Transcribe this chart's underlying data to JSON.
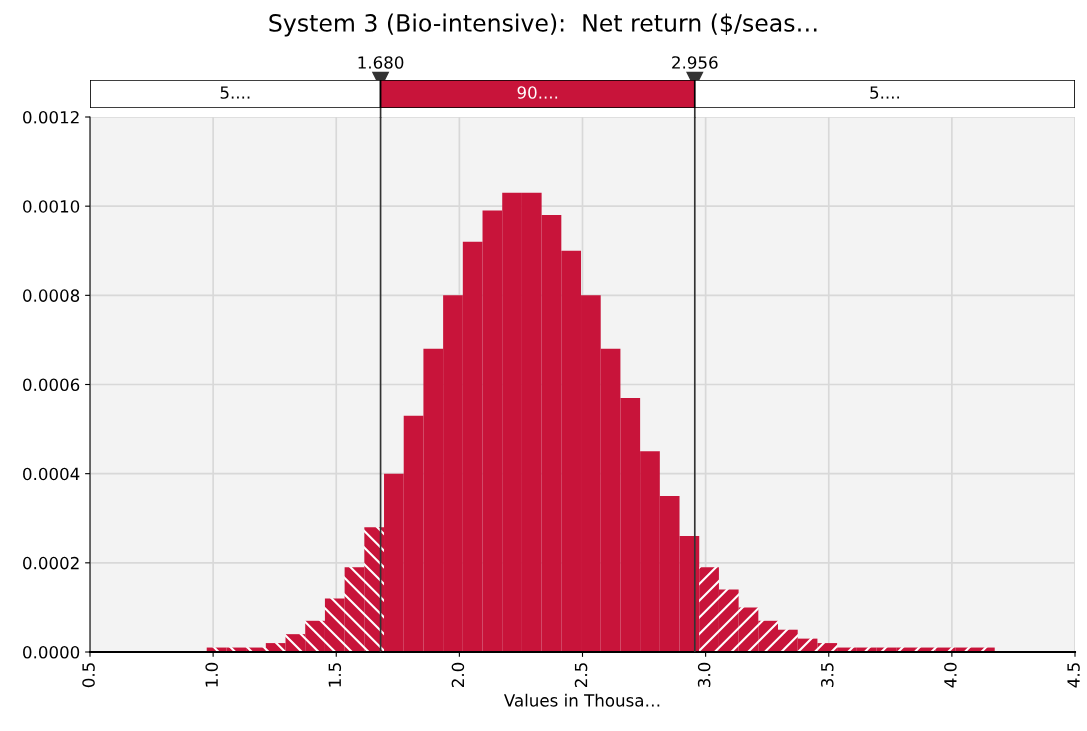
{
  "chart_data": {
    "type": "histogram",
    "title": "System 3 (Bio-intensive):  Net return ($/seas…",
    "xlabel": "Values in Thousa…",
    "bins": [
      0.974,
      1.054,
      1.134,
      1.214,
      1.294,
      1.374,
      1.454,
      1.534,
      1.614,
      1.694,
      1.774,
      1.854,
      1.934,
      2.014,
      2.094,
      2.174,
      2.254,
      2.334,
      2.414,
      2.494,
      2.574,
      2.654,
      2.734,
      2.814,
      2.894,
      2.974,
      3.054,
      3.134,
      3.214,
      3.294,
      3.374,
      3.454,
      3.534,
      3.614,
      3.694,
      3.774,
      3.854,
      3.934,
      4.014,
      4.094,
      4.174
    ],
    "values": [
      1e-05,
      1e-05,
      1e-05,
      2e-05,
      4e-05,
      7e-05,
      0.00012,
      0.00019,
      0.00028,
      0.0004,
      0.00053,
      0.00068,
      0.0008,
      0.00092,
      0.00099,
      0.00103,
      0.00103,
      0.00098,
      0.0009,
      0.0008,
      0.00068,
      0.00057,
      0.00045,
      0.00035,
      0.00026,
      0.00019,
      0.00014,
      0.0001,
      7e-05,
      5e-05,
      3e-05,
      2e-05,
      1e-05,
      1e-05,
      1e-05,
      1e-05,
      1e-05,
      1e-05,
      1e-05,
      1e-05
    ],
    "color": "#c8143a",
    "xlim": [
      0.5,
      4.5
    ],
    "xticks": [
      0.5,
      {
        "value": 1,
        "label": "1.0"
      },
      1.5,
      {
        "value": 2,
        "label": "2.0"
      },
      2.5,
      {
        "value": 3,
        "label": "3.0"
      },
      3.5,
      {
        "value": 4,
        "label": "4.0"
      },
      4.5
    ],
    "ylim": [
      0,
      0.0012
    ],
    "yticks": [
      {
        "value": 0,
        "label": "0.0000"
      },
      {
        "value": 0.0002,
        "label": "0.0002"
      },
      {
        "value": 0.0004,
        "label": "0.0004"
      },
      {
        "value": 0.0006,
        "label": "0.0006"
      },
      {
        "value": 0.0008,
        "label": "0.0008"
      },
      {
        "value": 0.001,
        "label": "0.0010"
      },
      {
        "value": 0.0012,
        "label": "0.0012"
      }
    ],
    "grid": true,
    "ref_lines": [
      {
        "axis": "x",
        "value": 1.68,
        "label": "1.680",
        "color": "#333333"
      },
      {
        "axis": "x",
        "value": 2.956,
        "label": "2.956",
        "color": "#333333"
      }
    ],
    "annotations": [
      "5....",
      "90....",
      "5...."
    ]
  }
}
